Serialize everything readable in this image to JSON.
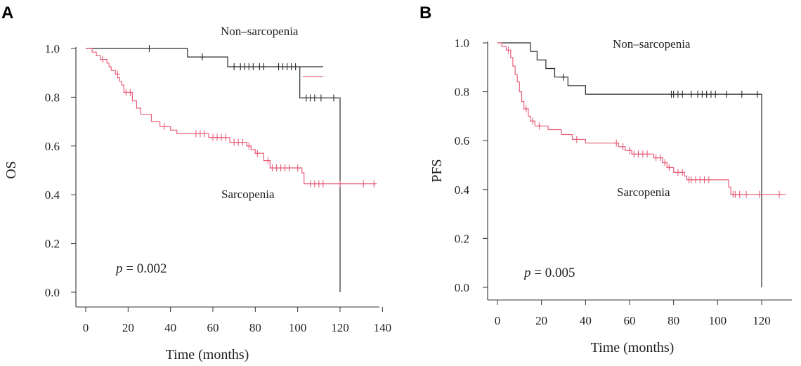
{
  "chart_data": [
    {
      "panel_label": "A",
      "type": "line",
      "subtype": "kaplan-meier",
      "xlabel": "Time (months)",
      "ylabel": "OS",
      "xlim": [
        0,
        140
      ],
      "ylim": [
        0,
        1.0
      ],
      "xticks": [
        "0",
        "20",
        "40",
        "60",
        "80",
        "100",
        "120",
        "140"
      ],
      "yticks": [
        "0.0",
        "0.2",
        "0.4",
        "0.6",
        "0.8",
        "1.0"
      ],
      "p_prefix": "p",
      "p_value": " = 0.002",
      "legend_swatch_color": "#e8607a",
      "series": [
        {
          "name": "Non–sarcopenia",
          "color": "#2b2b2b",
          "steps": [
            [
              0,
              1.0
            ],
            [
              48,
              1.0
            ],
            [
              48,
              0.965
            ],
            [
              67,
              0.965
            ],
            [
              67,
              0.925
            ],
            [
              101,
              0.925
            ],
            [
              101,
              0.797
            ],
            [
              120,
              0.797
            ],
            [
              120,
              0.0
            ]
          ],
          "censor_segment": [
            [
              101,
              0.925
            ],
            [
              112,
              0.925
            ]
          ],
          "censors": [
            [
              30,
              1.0
            ],
            [
              55,
              0.965
            ],
            [
              70,
              0.925
            ],
            [
              73,
              0.925
            ],
            [
              75,
              0.925
            ],
            [
              77,
              0.925
            ],
            [
              79,
              0.925
            ],
            [
              82,
              0.925
            ],
            [
              84,
              0.925
            ],
            [
              91,
              0.925
            ],
            [
              93,
              0.925
            ],
            [
              95,
              0.925
            ],
            [
              97,
              0.925
            ],
            [
              99,
              0.925
            ],
            [
              104,
              0.797
            ],
            [
              106,
              0.797
            ],
            [
              108,
              0.797
            ],
            [
              111,
              0.797
            ],
            [
              117,
              0.797
            ]
          ]
        },
        {
          "name": "Sarcopenia",
          "color": "#e8607a",
          "steps": [
            [
              0,
              1.0
            ],
            [
              3,
              1.0
            ],
            [
              3,
              0.985
            ],
            [
              5,
              0.985
            ],
            [
              5,
              0.97
            ],
            [
              7,
              0.97
            ],
            [
              7,
              0.955
            ],
            [
              10,
              0.955
            ],
            [
              10,
              0.94
            ],
            [
              11,
              0.94
            ],
            [
              11,
              0.925
            ],
            [
              12,
              0.925
            ],
            [
              12,
              0.91
            ],
            [
              14,
              0.91
            ],
            [
              14,
              0.895
            ],
            [
              15,
              0.895
            ],
            [
              15,
              0.88
            ],
            [
              16,
              0.88
            ],
            [
              16,
              0.865
            ],
            [
              17,
              0.865
            ],
            [
              17,
              0.85
            ],
            [
              18,
              0.85
            ],
            [
              18,
              0.82
            ],
            [
              22,
              0.82
            ],
            [
              22,
              0.785
            ],
            [
              24,
              0.785
            ],
            [
              24,
              0.755
            ],
            [
              26,
              0.755
            ],
            [
              26,
              0.73
            ],
            [
              31,
              0.73
            ],
            [
              31,
              0.7
            ],
            [
              35,
              0.7
            ],
            [
              35,
              0.68
            ],
            [
              40,
              0.68
            ],
            [
              40,
              0.665
            ],
            [
              43,
              0.665
            ],
            [
              43,
              0.65
            ],
            [
              58,
              0.65
            ],
            [
              58,
              0.635
            ],
            [
              68,
              0.635
            ],
            [
              68,
              0.615
            ],
            [
              76,
              0.615
            ],
            [
              76,
              0.6
            ],
            [
              78,
              0.6
            ],
            [
              78,
              0.585
            ],
            [
              80,
              0.585
            ],
            [
              80,
              0.57
            ],
            [
              84,
              0.57
            ],
            [
              84,
              0.54
            ],
            [
              87,
              0.54
            ],
            [
              87,
              0.51
            ],
            [
              102,
              0.51
            ],
            [
              102,
              0.49
            ],
            [
              103,
              0.49
            ],
            [
              103,
              0.445
            ],
            [
              137,
              0.445
            ]
          ],
          "censors": [
            [
              8,
              0.955
            ],
            [
              15,
              0.895
            ],
            [
              19,
              0.82
            ],
            [
              21,
              0.82
            ],
            [
              37,
              0.68
            ],
            [
              52,
              0.65
            ],
            [
              54,
              0.65
            ],
            [
              56,
              0.65
            ],
            [
              60,
              0.635
            ],
            [
              62,
              0.635
            ],
            [
              64,
              0.635
            ],
            [
              66,
              0.635
            ],
            [
              70,
              0.615
            ],
            [
              72,
              0.615
            ],
            [
              74,
              0.615
            ],
            [
              77,
              0.6
            ],
            [
              81,
              0.57
            ],
            [
              86,
              0.54
            ],
            [
              88,
              0.51
            ],
            [
              90,
              0.51
            ],
            [
              92,
              0.51
            ],
            [
              94,
              0.51
            ],
            [
              96,
              0.51
            ],
            [
              100,
              0.51
            ],
            [
              106,
              0.445
            ],
            [
              108,
              0.445
            ],
            [
              110,
              0.445
            ],
            [
              112,
              0.445
            ],
            [
              120,
              0.445
            ],
            [
              131,
              0.445
            ],
            [
              136,
              0.445
            ]
          ]
        }
      ]
    },
    {
      "panel_label": "B",
      "type": "line",
      "subtype": "kaplan-meier",
      "xlabel": "Time (months)",
      "ylabel": "PFS",
      "xlim": [
        0,
        130
      ],
      "ylim": [
        0,
        1.0
      ],
      "xticks": [
        "0",
        "20",
        "40",
        "60",
        "80",
        "100",
        "120"
      ],
      "yticks": [
        "0.0",
        "0.2",
        "0.4",
        "0.6",
        "0.8",
        "1.0"
      ],
      "p_prefix": "p",
      "p_value": " = 0.005",
      "series": [
        {
          "name": "Non–sarcopenia",
          "color": "#2b2b2b",
          "steps": [
            [
              0,
              1.0
            ],
            [
              15,
              1.0
            ],
            [
              15,
              0.965
            ],
            [
              18,
              0.965
            ],
            [
              18,
              0.93
            ],
            [
              22,
              0.93
            ],
            [
              22,
              0.895
            ],
            [
              26,
              0.895
            ],
            [
              26,
              0.86
            ],
            [
              32,
              0.86
            ],
            [
              32,
              0.825
            ],
            [
              40,
              0.825
            ],
            [
              40,
              0.79
            ],
            [
              120,
              0.79
            ],
            [
              120,
              0.0
            ]
          ],
          "censors": [
            [
              30,
              0.86
            ],
            [
              79,
              0.79
            ],
            [
              80,
              0.79
            ],
            [
              82,
              0.79
            ],
            [
              84,
              0.79
            ],
            [
              88,
              0.79
            ],
            [
              91,
              0.79
            ],
            [
              93,
              0.79
            ],
            [
              95,
              0.79
            ],
            [
              97,
              0.79
            ],
            [
              99,
              0.79
            ],
            [
              104,
              0.79
            ],
            [
              111,
              0.79
            ],
            [
              118,
              0.79
            ]
          ]
        },
        {
          "name": "Sarcopenia",
          "color": "#e8607a",
          "steps": [
            [
              0,
              1.0
            ],
            [
              2,
              1.0
            ],
            [
              2,
              0.985
            ],
            [
              4,
              0.985
            ],
            [
              4,
              0.97
            ],
            [
              6,
              0.97
            ],
            [
              6,
              0.94
            ],
            [
              7,
              0.94
            ],
            [
              7,
              0.905
            ],
            [
              8,
              0.905
            ],
            [
              8,
              0.87
            ],
            [
              9,
              0.87
            ],
            [
              9,
              0.84
            ],
            [
              10,
              0.84
            ],
            [
              10,
              0.8
            ],
            [
              11,
              0.8
            ],
            [
              11,
              0.76
            ],
            [
              12,
              0.76
            ],
            [
              12,
              0.73
            ],
            [
              14,
              0.73
            ],
            [
              14,
              0.7
            ],
            [
              15,
              0.7
            ],
            [
              15,
              0.68
            ],
            [
              17,
              0.68
            ],
            [
              17,
              0.66
            ],
            [
              23,
              0.66
            ],
            [
              23,
              0.645
            ],
            [
              29,
              0.645
            ],
            [
              29,
              0.625
            ],
            [
              34,
              0.625
            ],
            [
              34,
              0.605
            ],
            [
              40,
              0.605
            ],
            [
              40,
              0.59
            ],
            [
              55,
              0.59
            ],
            [
              55,
              0.575
            ],
            [
              58,
              0.575
            ],
            [
              58,
              0.56
            ],
            [
              61,
              0.56
            ],
            [
              61,
              0.545
            ],
            [
              71,
              0.545
            ],
            [
              71,
              0.53
            ],
            [
              75,
              0.53
            ],
            [
              75,
              0.51
            ],
            [
              77,
              0.51
            ],
            [
              77,
              0.49
            ],
            [
              80,
              0.49
            ],
            [
              80,
              0.47
            ],
            [
              85,
              0.47
            ],
            [
              85,
              0.455
            ],
            [
              86,
              0.455
            ],
            [
              86,
              0.44
            ],
            [
              105,
              0.44
            ],
            [
              105,
              0.41
            ],
            [
              106,
              0.41
            ],
            [
              106,
              0.38
            ],
            [
              131,
              0.38
            ]
          ],
          "censors": [
            [
              5,
              0.97
            ],
            [
              13,
              0.73
            ],
            [
              16,
              0.68
            ],
            [
              19,
              0.66
            ],
            [
              36,
              0.605
            ],
            [
              54,
              0.59
            ],
            [
              57,
              0.575
            ],
            [
              60,
              0.56
            ],
            [
              62,
              0.545
            ],
            [
              64,
              0.545
            ],
            [
              66,
              0.545
            ],
            [
              68,
              0.545
            ],
            [
              72,
              0.53
            ],
            [
              74,
              0.53
            ],
            [
              76,
              0.51
            ],
            [
              78,
              0.49
            ],
            [
              82,
              0.47
            ],
            [
              84,
              0.47
            ],
            [
              87,
              0.44
            ],
            [
              88,
              0.44
            ],
            [
              90,
              0.44
            ],
            [
              92,
              0.44
            ],
            [
              94,
              0.44
            ],
            [
              96,
              0.44
            ],
            [
              107,
              0.38
            ],
            [
              108,
              0.38
            ],
            [
              110,
              0.38
            ],
            [
              113,
              0.38
            ],
            [
              119,
              0.38
            ],
            [
              128,
              0.38
            ]
          ]
        }
      ]
    }
  ]
}
